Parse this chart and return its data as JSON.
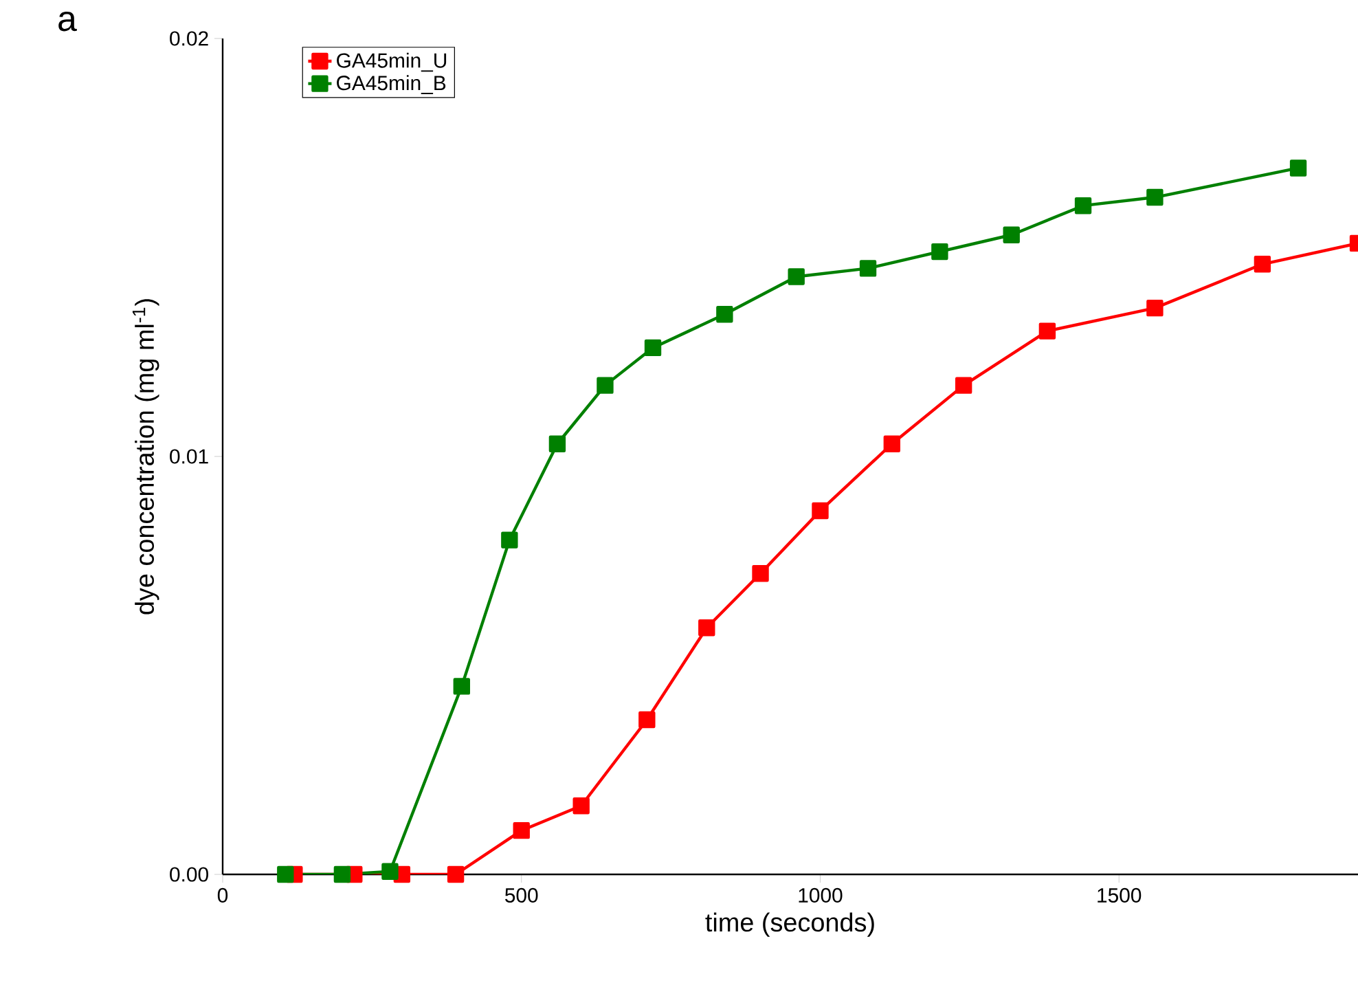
{
  "chart_data": {
    "type": "line",
    "xlabel": "time (seconds)",
    "ylabel": "dye concentration (mg ml$^{-1}$)",
    "annotations": [
      "a"
    ],
    "xlim": [
      0,
      1900
    ],
    "xticks": [
      0,
      500,
      1000,
      1500
    ],
    "ylim": [
      0,
      0.02
    ],
    "yticks": [
      {
        "value": 0,
        "label": "0.00"
      },
      {
        "value": 0.01,
        "label": "0.01"
      },
      {
        "value": 0.02,
        "label": "0.02"
      }
    ],
    "marker": "square",
    "legend": "top left",
    "grid": false,
    "series": [
      {
        "name": "GA45min_U",
        "color": "#ff0000",
        "x": [
          120,
          220,
          300,
          390,
          500,
          600,
          710,
          810,
          900,
          1000,
          1120,
          1240,
          1380,
          1560,
          1740,
          1900
        ],
        "values": [
          0,
          0,
          0,
          0,
          0.00105,
          0.00164,
          0.0037,
          0.0059,
          0.0072,
          0.0087,
          0.0103,
          0.0117,
          0.013,
          0.01355,
          0.0146,
          0.0151
        ]
      },
      {
        "name": "GA45min_B",
        "color": "#008000",
        "x": [
          105,
          200,
          280,
          400,
          480,
          560,
          640,
          720,
          840,
          960,
          1080,
          1200,
          1320,
          1440,
          1560,
          1800
        ],
        "values": [
          0,
          0,
          7e-05,
          0.0045,
          0.008,
          0.0103,
          0.0117,
          0.0126,
          0.0134,
          0.0143,
          0.0145,
          0.0149,
          0.0153,
          0.016,
          0.0162,
          0.0169
        ]
      }
    ]
  }
}
